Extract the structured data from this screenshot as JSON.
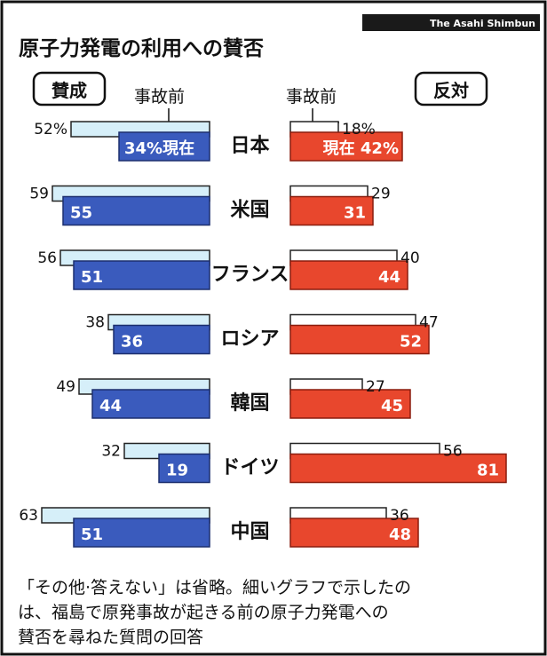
{
  "credit": "The Asahi Shimbun",
  "chart_data": {
    "type": "bar",
    "title": "原子力発電の利用への賛否",
    "left_tag": "賛成",
    "right_tag": "反対",
    "before_label": "事故前",
    "now_label": "現在",
    "categories": [
      "日本",
      "米国",
      "フランス",
      "ロシア",
      "韓国",
      "ドイツ",
      "中国"
    ],
    "series": [
      {
        "name": "賛成 事故前",
        "values": [
          52,
          59,
          56,
          38,
          49,
          32,
          63
        ],
        "color": "#d6eff9"
      },
      {
        "name": "賛成 現在",
        "values": [
          34,
          55,
          51,
          36,
          44,
          19,
          51
        ],
        "color": "#3a5bbd"
      },
      {
        "name": "反対 事故前",
        "values": [
          18,
          29,
          40,
          47,
          27,
          56,
          36
        ],
        "color": "#ffffff"
      },
      {
        "name": "反対 現在",
        "values": [
          42,
          31,
          44,
          52,
          45,
          81,
          48
        ],
        "color": "#e8472d"
      }
    ],
    "japan_labels": {
      "left_before": "52%",
      "left_now": "34%現在",
      "right_before": "18%",
      "right_now": "現在 42%"
    }
  },
  "note": {
    "line1": "「その他·答えない」は省略。細いグラフで示したの",
    "line2": "は、福島で原発事故が起きる前の原子力発電への",
    "line3": "賛否を尋ねた質問の回答"
  }
}
